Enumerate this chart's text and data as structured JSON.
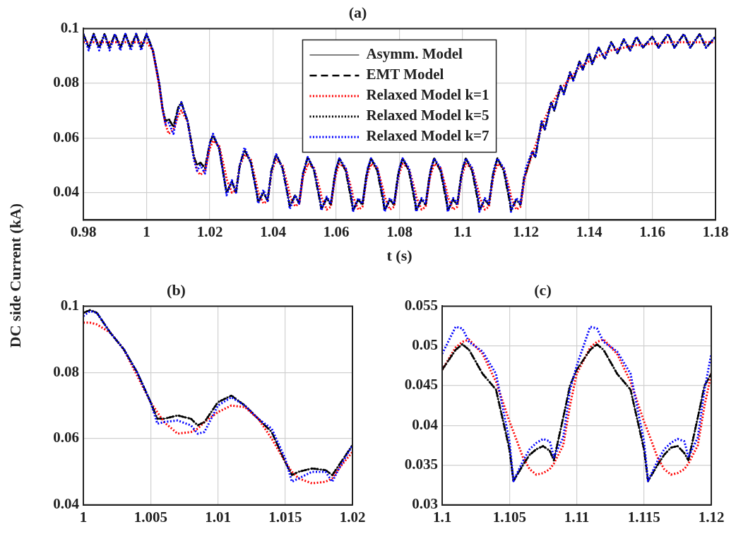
{
  "chart_data": [
    {
      "type": "line",
      "title": "(a)",
      "xlabel": "t (s)",
      "ylabel": "DC side Current (kA)",
      "xlim": [
        0.98,
        1.18
      ],
      "xticks": [
        0.98,
        1,
        1.02,
        1.04,
        1.06,
        1.08,
        1.1,
        1.12,
        1.14,
        1.16,
        1.18
      ],
      "ylim": [
        0.03,
        0.1
      ],
      "yticks": [
        0.04,
        0.06,
        0.08,
        0.1
      ],
      "grid": true,
      "legend": "top",
      "x": [
        0.98,
        0.9817,
        0.9833,
        0.985,
        0.9867,
        0.9883,
        0.99,
        0.9917,
        0.9933,
        0.995,
        0.9967,
        0.9983,
        1,
        1.002,
        1.004,
        1.005,
        1.006,
        1.007,
        1.0085,
        1.01,
        1.011,
        1.013,
        1.015,
        1.016,
        1.017,
        1.0185,
        1.02,
        1.021,
        1.023,
        1.025,
        1.0253,
        1.027,
        1.0283,
        1.0295,
        1.03,
        1.031,
        1.033,
        1.035,
        1.0353,
        1.037,
        1.0383,
        1.0395,
        1.04,
        1.041,
        1.043,
        1.045,
        1.0453,
        1.047,
        1.0483,
        1.0495,
        1.05,
        1.051,
        1.053,
        1.055,
        1.0553,
        1.057,
        1.0583,
        1.0595,
        1.06,
        1.061,
        1.063,
        1.065,
        1.0653,
        1.067,
        1.0683,
        1.0695,
        1.07,
        1.071,
        1.073,
        1.075,
        1.0753,
        1.077,
        1.0783,
        1.0795,
        1.08,
        1.081,
        1.083,
        1.085,
        1.0853,
        1.087,
        1.0883,
        1.0895,
        1.09,
        1.091,
        1.093,
        1.095,
        1.0953,
        1.097,
        1.0983,
        1.0995,
        1.1,
        1.101,
        1.103,
        1.105,
        1.1053,
        1.107,
        1.1083,
        1.1095,
        1.11,
        1.111,
        1.113,
        1.115,
        1.1153,
        1.117,
        1.1183,
        1.1195,
        1.12,
        1.122,
        1.123,
        1.125,
        1.126,
        1.128,
        1.129,
        1.131,
        1.132,
        1.134,
        1.135,
        1.137,
        1.138,
        1.14,
        1.141,
        1.143,
        1.145,
        1.147,
        1.149,
        1.151,
        1.153,
        1.155,
        1.157,
        1.16,
        1.162,
        1.165,
        1.167,
        1.17,
        1.172,
        1.175,
        1.177,
        1.18
      ],
      "series": [
        {
          "name": "Asymm. Model",
          "color": "#000000",
          "line_style": "solid",
          "values": [
            0.098,
            0.093,
            0.098,
            0.093,
            0.098,
            0.093,
            0.098,
            0.093,
            0.098,
            0.093,
            0.098,
            0.093,
            0.098,
            0.092,
            0.08,
            0.071,
            0.066,
            0.067,
            0.064,
            0.071,
            0.073,
            0.066,
            0.053,
            0.05,
            0.051,
            0.049,
            0.058,
            0.061,
            0.056,
            0.042,
            0.04,
            0.044,
            0.04,
            0.05,
            0.052,
            0.0555,
            0.051,
            0.039,
            0.0365,
            0.04,
            0.037,
            0.048,
            0.05,
            0.054,
            0.049,
            0.037,
            0.035,
            0.039,
            0.036,
            0.047,
            0.049,
            0.053,
            0.048,
            0.036,
            0.034,
            0.038,
            0.0355,
            0.046,
            0.0485,
            0.0525,
            0.048,
            0.036,
            0.0335,
            0.0375,
            0.0355,
            0.046,
            0.0485,
            0.0525,
            0.048,
            0.036,
            0.0335,
            0.0375,
            0.0355,
            0.046,
            0.0485,
            0.0525,
            0.048,
            0.036,
            0.0335,
            0.0375,
            0.0355,
            0.046,
            0.0485,
            0.0525,
            0.048,
            0.036,
            0.0335,
            0.0375,
            0.0355,
            0.046,
            0.0485,
            0.0525,
            0.048,
            0.036,
            0.0335,
            0.0375,
            0.0355,
            0.046,
            0.0485,
            0.0525,
            0.048,
            0.036,
            0.0335,
            0.0375,
            0.0355,
            0.046,
            0.047,
            0.055,
            0.053,
            0.066,
            0.063,
            0.073,
            0.07,
            0.079,
            0.076,
            0.084,
            0.081,
            0.088,
            0.085,
            0.091,
            0.087,
            0.093,
            0.089,
            0.095,
            0.091,
            0.096,
            0.092,
            0.097,
            0.093,
            0.097,
            0.093,
            0.098,
            0.093,
            0.098,
            0.093,
            0.098,
            0.093,
            0.097
          ]
        },
        {
          "name": "EMT Model",
          "color": "#000000",
          "line_style": "dashed",
          "values": [
            0.098,
            0.093,
            0.098,
            0.093,
            0.098,
            0.093,
            0.098,
            0.093,
            0.098,
            0.093,
            0.098,
            0.093,
            0.098,
            0.092,
            0.08,
            0.071,
            0.066,
            0.067,
            0.064,
            0.071,
            0.073,
            0.066,
            0.053,
            0.05,
            0.051,
            0.049,
            0.058,
            0.061,
            0.056,
            0.042,
            0.04,
            0.044,
            0.04,
            0.05,
            0.052,
            0.0555,
            0.051,
            0.039,
            0.0365,
            0.04,
            0.037,
            0.048,
            0.05,
            0.054,
            0.049,
            0.037,
            0.035,
            0.039,
            0.036,
            0.047,
            0.049,
            0.053,
            0.048,
            0.036,
            0.034,
            0.038,
            0.0355,
            0.046,
            0.0485,
            0.0525,
            0.048,
            0.036,
            0.0335,
            0.0375,
            0.0355,
            0.046,
            0.0485,
            0.0525,
            0.048,
            0.036,
            0.0335,
            0.0375,
            0.0355,
            0.046,
            0.0485,
            0.0525,
            0.048,
            0.036,
            0.0335,
            0.0375,
            0.0355,
            0.046,
            0.0485,
            0.0525,
            0.048,
            0.036,
            0.0335,
            0.0375,
            0.0355,
            0.046,
            0.0485,
            0.0525,
            0.048,
            0.036,
            0.0335,
            0.0375,
            0.0355,
            0.046,
            0.0485,
            0.0525,
            0.048,
            0.036,
            0.0335,
            0.0375,
            0.0355,
            0.046,
            0.047,
            0.055,
            0.053,
            0.066,
            0.063,
            0.073,
            0.07,
            0.079,
            0.076,
            0.084,
            0.081,
            0.088,
            0.085,
            0.091,
            0.087,
            0.093,
            0.089,
            0.095,
            0.091,
            0.096,
            0.092,
            0.097,
            0.093,
            0.097,
            0.093,
            0.098,
            0.093,
            0.098,
            0.093,
            0.098,
            0.093,
            0.097
          ]
        },
        {
          "name": "Relaxed Model k=1",
          "color": "#ff0000",
          "line_style": "dotted",
          "values": [
            0.095,
            0.095,
            0.095,
            0.095,
            0.095,
            0.095,
            0.095,
            0.095,
            0.095,
            0.095,
            0.095,
            0.095,
            0.095,
            0.092,
            0.079,
            0.071,
            0.065,
            0.0615,
            0.063,
            0.068,
            0.07,
            0.066,
            0.053,
            0.048,
            0.0465,
            0.048,
            0.056,
            0.059,
            0.057,
            0.047,
            0.045,
            0.04,
            0.041,
            0.05,
            0.051,
            0.054,
            0.052,
            0.042,
            0.04,
            0.036,
            0.037,
            0.047,
            0.049,
            0.052,
            0.05,
            0.041,
            0.039,
            0.035,
            0.036,
            0.046,
            0.047,
            0.0505,
            0.049,
            0.0405,
            0.0385,
            0.0338,
            0.0348,
            0.0445,
            0.047,
            0.0505,
            0.049,
            0.0405,
            0.0385,
            0.0338,
            0.0348,
            0.0445,
            0.047,
            0.0505,
            0.049,
            0.0405,
            0.0385,
            0.0338,
            0.0348,
            0.0445,
            0.047,
            0.0505,
            0.049,
            0.0405,
            0.0385,
            0.0338,
            0.0348,
            0.0445,
            0.047,
            0.0505,
            0.049,
            0.0405,
            0.0385,
            0.0338,
            0.0348,
            0.0445,
            0.047,
            0.0505,
            0.049,
            0.0405,
            0.0385,
            0.0338,
            0.0348,
            0.0445,
            0.047,
            0.0505,
            0.049,
            0.0405,
            0.0385,
            0.0338,
            0.0348,
            0.0445,
            0.047,
            0.054,
            0.057,
            0.064,
            0.067,
            0.072,
            0.074,
            0.078,
            0.079,
            0.082,
            0.083,
            0.086,
            0.0865,
            0.088,
            0.0885,
            0.09,
            0.091,
            0.092,
            0.0925,
            0.093,
            0.0935,
            0.094,
            0.094,
            0.0945,
            0.0945,
            0.095,
            0.095,
            0.095,
            0.095,
            0.095,
            0.095,
            0.095
          ]
        },
        {
          "name": "Relaxed Model k=5",
          "color": "#000000",
          "line_style": "dotted",
          "values": [
            0.098,
            0.093,
            0.098,
            0.093,
            0.098,
            0.093,
            0.098,
            0.093,
            0.098,
            0.093,
            0.098,
            0.093,
            0.098,
            0.092,
            0.08,
            0.071,
            0.066,
            0.067,
            0.064,
            0.071,
            0.073,
            0.066,
            0.053,
            0.05,
            0.051,
            0.049,
            0.058,
            0.061,
            0.056,
            0.042,
            0.04,
            0.044,
            0.04,
            0.05,
            0.052,
            0.0555,
            0.051,
            0.039,
            0.0365,
            0.04,
            0.037,
            0.048,
            0.05,
            0.054,
            0.049,
            0.037,
            0.035,
            0.039,
            0.036,
            0.047,
            0.049,
            0.053,
            0.048,
            0.036,
            0.034,
            0.038,
            0.0355,
            0.046,
            0.0485,
            0.0525,
            0.048,
            0.036,
            0.0335,
            0.0375,
            0.0355,
            0.046,
            0.0485,
            0.0525,
            0.048,
            0.036,
            0.0335,
            0.0375,
            0.0355,
            0.046,
            0.0485,
            0.0525,
            0.048,
            0.036,
            0.0335,
            0.0375,
            0.0355,
            0.046,
            0.0485,
            0.0525,
            0.048,
            0.036,
            0.0335,
            0.0375,
            0.0355,
            0.046,
            0.0485,
            0.0525,
            0.048,
            0.036,
            0.0335,
            0.0375,
            0.0355,
            0.046,
            0.0485,
            0.0525,
            0.048,
            0.036,
            0.0335,
            0.0375,
            0.0355,
            0.046,
            0.047,
            0.055,
            0.053,
            0.066,
            0.063,
            0.073,
            0.07,
            0.079,
            0.076,
            0.084,
            0.081,
            0.088,
            0.085,
            0.091,
            0.087,
            0.093,
            0.089,
            0.095,
            0.091,
            0.096,
            0.092,
            0.097,
            0.093,
            0.097,
            0.093,
            0.098,
            0.093,
            0.098,
            0.093,
            0.098,
            0.093,
            0.097
          ]
        },
        {
          "name": "Relaxed Model k=7",
          "color": "#0000ff",
          "line_style": "dotted",
          "values": [
            0.098,
            0.092,
            0.098,
            0.092,
            0.098,
            0.092,
            0.098,
            0.092,
            0.098,
            0.092,
            0.098,
            0.092,
            0.098,
            0.092,
            0.08,
            0.071,
            0.065,
            0.0655,
            0.0615,
            0.07,
            0.073,
            0.066,
            0.052,
            0.048,
            0.05,
            0.047,
            0.058,
            0.0615,
            0.056,
            0.042,
            0.039,
            0.0445,
            0.04,
            0.05,
            0.052,
            0.0565,
            0.051,
            0.039,
            0.036,
            0.041,
            0.037,
            0.048,
            0.05,
            0.054,
            0.049,
            0.037,
            0.034,
            0.039,
            0.036,
            0.047,
            0.049,
            0.053,
            0.0485,
            0.037,
            0.0335,
            0.0385,
            0.036,
            0.045,
            0.049,
            0.0525,
            0.049,
            0.038,
            0.033,
            0.038,
            0.036,
            0.045,
            0.049,
            0.0525,
            0.049,
            0.038,
            0.033,
            0.038,
            0.036,
            0.045,
            0.049,
            0.0525,
            0.049,
            0.038,
            0.033,
            0.038,
            0.036,
            0.045,
            0.049,
            0.0525,
            0.049,
            0.038,
            0.033,
            0.038,
            0.036,
            0.045,
            0.049,
            0.0525,
            0.049,
            0.038,
            0.033,
            0.038,
            0.036,
            0.045,
            0.049,
            0.0525,
            0.049,
            0.038,
            0.033,
            0.038,
            0.036,
            0.045,
            0.049,
            0.055,
            0.053,
            0.066,
            0.063,
            0.073,
            0.07,
            0.079,
            0.076,
            0.084,
            0.081,
            0.088,
            0.085,
            0.091,
            0.087,
            0.093,
            0.089,
            0.095,
            0.091,
            0.096,
            0.092,
            0.097,
            0.093,
            0.097,
            0.093,
            0.098,
            0.093,
            0.098,
            0.093,
            0.098,
            0.093,
            0.097
          ]
        }
      ]
    },
    {
      "type": "line",
      "title": "(b)",
      "xlim": [
        1,
        1.02
      ],
      "xticks": [
        1,
        1.005,
        1.01,
        1.015,
        1.02
      ],
      "ylim": [
        0.04,
        0.1
      ],
      "yticks": [
        0.04,
        0.06,
        0.08,
        0.1
      ],
      "grid": true,
      "x": [
        1,
        1.0005,
        1.001,
        1.002,
        1.003,
        1.004,
        1.005,
        1.0055,
        1.006,
        1.007,
        1.008,
        1.0085,
        1.009,
        1.01,
        1.011,
        1.012,
        1.013,
        1.014,
        1.015,
        1.0155,
        1.016,
        1.017,
        1.018,
        1.0185,
        1.019,
        1.02
      ],
      "series": [
        {
          "color": "#000000",
          "line_style": "solid",
          "values": [
            0.098,
            0.0988,
            0.098,
            0.092,
            0.087,
            0.08,
            0.071,
            0.066,
            0.066,
            0.067,
            0.066,
            0.064,
            0.065,
            0.071,
            0.073,
            0.07,
            0.066,
            0.062,
            0.053,
            0.049,
            0.05,
            0.051,
            0.0505,
            0.049,
            0.052,
            0.058
          ]
        },
        {
          "color": "#000000",
          "line_style": "dashed",
          "values": [
            0.098,
            0.0988,
            0.098,
            0.092,
            0.087,
            0.08,
            0.071,
            0.066,
            0.066,
            0.067,
            0.066,
            0.064,
            0.065,
            0.071,
            0.073,
            0.07,
            0.066,
            0.062,
            0.053,
            0.049,
            0.05,
            0.051,
            0.0505,
            0.049,
            0.052,
            0.058
          ]
        },
        {
          "color": "#ff0000",
          "line_style": "dotted",
          "values": [
            0.095,
            0.095,
            0.0945,
            0.092,
            0.087,
            0.079,
            0.071,
            0.068,
            0.065,
            0.0615,
            0.062,
            0.063,
            0.065,
            0.068,
            0.07,
            0.0695,
            0.066,
            0.06,
            0.053,
            0.05,
            0.048,
            0.0465,
            0.047,
            0.048,
            0.051,
            0.056
          ]
        },
        {
          "color": "#000000",
          "line_style": "dotted",
          "values": [
            0.098,
            0.0988,
            0.098,
            0.092,
            0.087,
            0.08,
            0.071,
            0.066,
            0.066,
            0.067,
            0.066,
            0.064,
            0.065,
            0.071,
            0.073,
            0.07,
            0.066,
            0.062,
            0.053,
            0.049,
            0.05,
            0.051,
            0.0505,
            0.049,
            0.052,
            0.058
          ]
        },
        {
          "color": "#0000ff",
          "line_style": "dotted",
          "values": [
            0.097,
            0.0985,
            0.098,
            0.092,
            0.087,
            0.08,
            0.071,
            0.0645,
            0.065,
            0.0655,
            0.064,
            0.0615,
            0.062,
            0.07,
            0.0725,
            0.07,
            0.066,
            0.063,
            0.054,
            0.047,
            0.048,
            0.05,
            0.05,
            0.047,
            0.051,
            0.058
          ]
        }
      ]
    },
    {
      "type": "line",
      "title": "(c)",
      "xlim": [
        1.1,
        1.12
      ],
      "xticks": [
        1.1,
        1.105,
        1.11,
        1.115,
        1.12
      ],
      "ylim": [
        0.03,
        0.055
      ],
      "yticks": [
        0.03,
        0.035,
        0.04,
        0.045,
        0.05,
        0.055
      ],
      "grid": true,
      "x": [
        1.1,
        1.101,
        1.1015,
        1.102,
        1.103,
        1.104,
        1.105,
        1.1053,
        1.106,
        1.1065,
        1.107,
        1.1075,
        1.108,
        1.1083,
        1.109,
        1.1095,
        1.11,
        1.111,
        1.1115,
        1.112,
        1.113,
        1.114,
        1.115,
        1.1153,
        1.116,
        1.1165,
        1.117,
        1.1175,
        1.118,
        1.1183,
        1.119,
        1.1195,
        1.12
      ],
      "series": [
        {
          "color": "#000000",
          "line_style": "solid",
          "values": [
            0.047,
            0.0495,
            0.0502,
            0.0495,
            0.0465,
            0.0445,
            0.037,
            0.033,
            0.035,
            0.0363,
            0.037,
            0.0374,
            0.0368,
            0.0356,
            0.041,
            0.045,
            0.047,
            0.0495,
            0.0502,
            0.0495,
            0.0465,
            0.0445,
            0.037,
            0.033,
            0.035,
            0.0363,
            0.0372,
            0.0374,
            0.0365,
            0.0356,
            0.041,
            0.045,
            0.0465
          ]
        },
        {
          "color": "#000000",
          "line_style": "dashed",
          "values": [
            0.047,
            0.0495,
            0.0502,
            0.0495,
            0.0465,
            0.0445,
            0.037,
            0.033,
            0.035,
            0.0363,
            0.037,
            0.0374,
            0.0368,
            0.0356,
            0.041,
            0.045,
            0.047,
            0.0495,
            0.0502,
            0.0495,
            0.0465,
            0.0445,
            0.037,
            0.033,
            0.035,
            0.0363,
            0.0372,
            0.0374,
            0.0365,
            0.0356,
            0.041,
            0.045,
            0.0465
          ]
        },
        {
          "color": "#ff0000",
          "line_style": "dotted",
          "values": [
            0.047,
            0.0498,
            0.0505,
            0.0508,
            0.049,
            0.0455,
            0.0405,
            0.0392,
            0.036,
            0.0345,
            0.0338,
            0.034,
            0.0345,
            0.0352,
            0.0375,
            0.0425,
            0.0465,
            0.0498,
            0.0505,
            0.0508,
            0.049,
            0.0455,
            0.0405,
            0.0392,
            0.036,
            0.0345,
            0.0338,
            0.034,
            0.0345,
            0.0352,
            0.0375,
            0.0425,
            0.0465
          ]
        },
        {
          "color": "#000000",
          "line_style": "dotted",
          "values": [
            0.047,
            0.0495,
            0.0502,
            0.0495,
            0.0465,
            0.0445,
            0.037,
            0.033,
            0.035,
            0.0363,
            0.037,
            0.0374,
            0.0368,
            0.0356,
            0.041,
            0.045,
            0.047,
            0.0495,
            0.0502,
            0.0495,
            0.0465,
            0.0445,
            0.037,
            0.033,
            0.035,
            0.0363,
            0.0372,
            0.0374,
            0.0365,
            0.0356,
            0.041,
            0.045,
            0.0465
          ]
        },
        {
          "color": "#0000ff",
          "line_style": "dotted",
          "values": [
            0.049,
            0.0524,
            0.0522,
            0.0505,
            0.0493,
            0.0465,
            0.038,
            0.033,
            0.0355,
            0.037,
            0.0378,
            0.0383,
            0.038,
            0.036,
            0.0385,
            0.0445,
            0.0475,
            0.0524,
            0.0522,
            0.0505,
            0.0493,
            0.0465,
            0.038,
            0.033,
            0.0355,
            0.037,
            0.0378,
            0.0383,
            0.038,
            0.036,
            0.0385,
            0.0445,
            0.049
          ]
        }
      ]
    }
  ]
}
